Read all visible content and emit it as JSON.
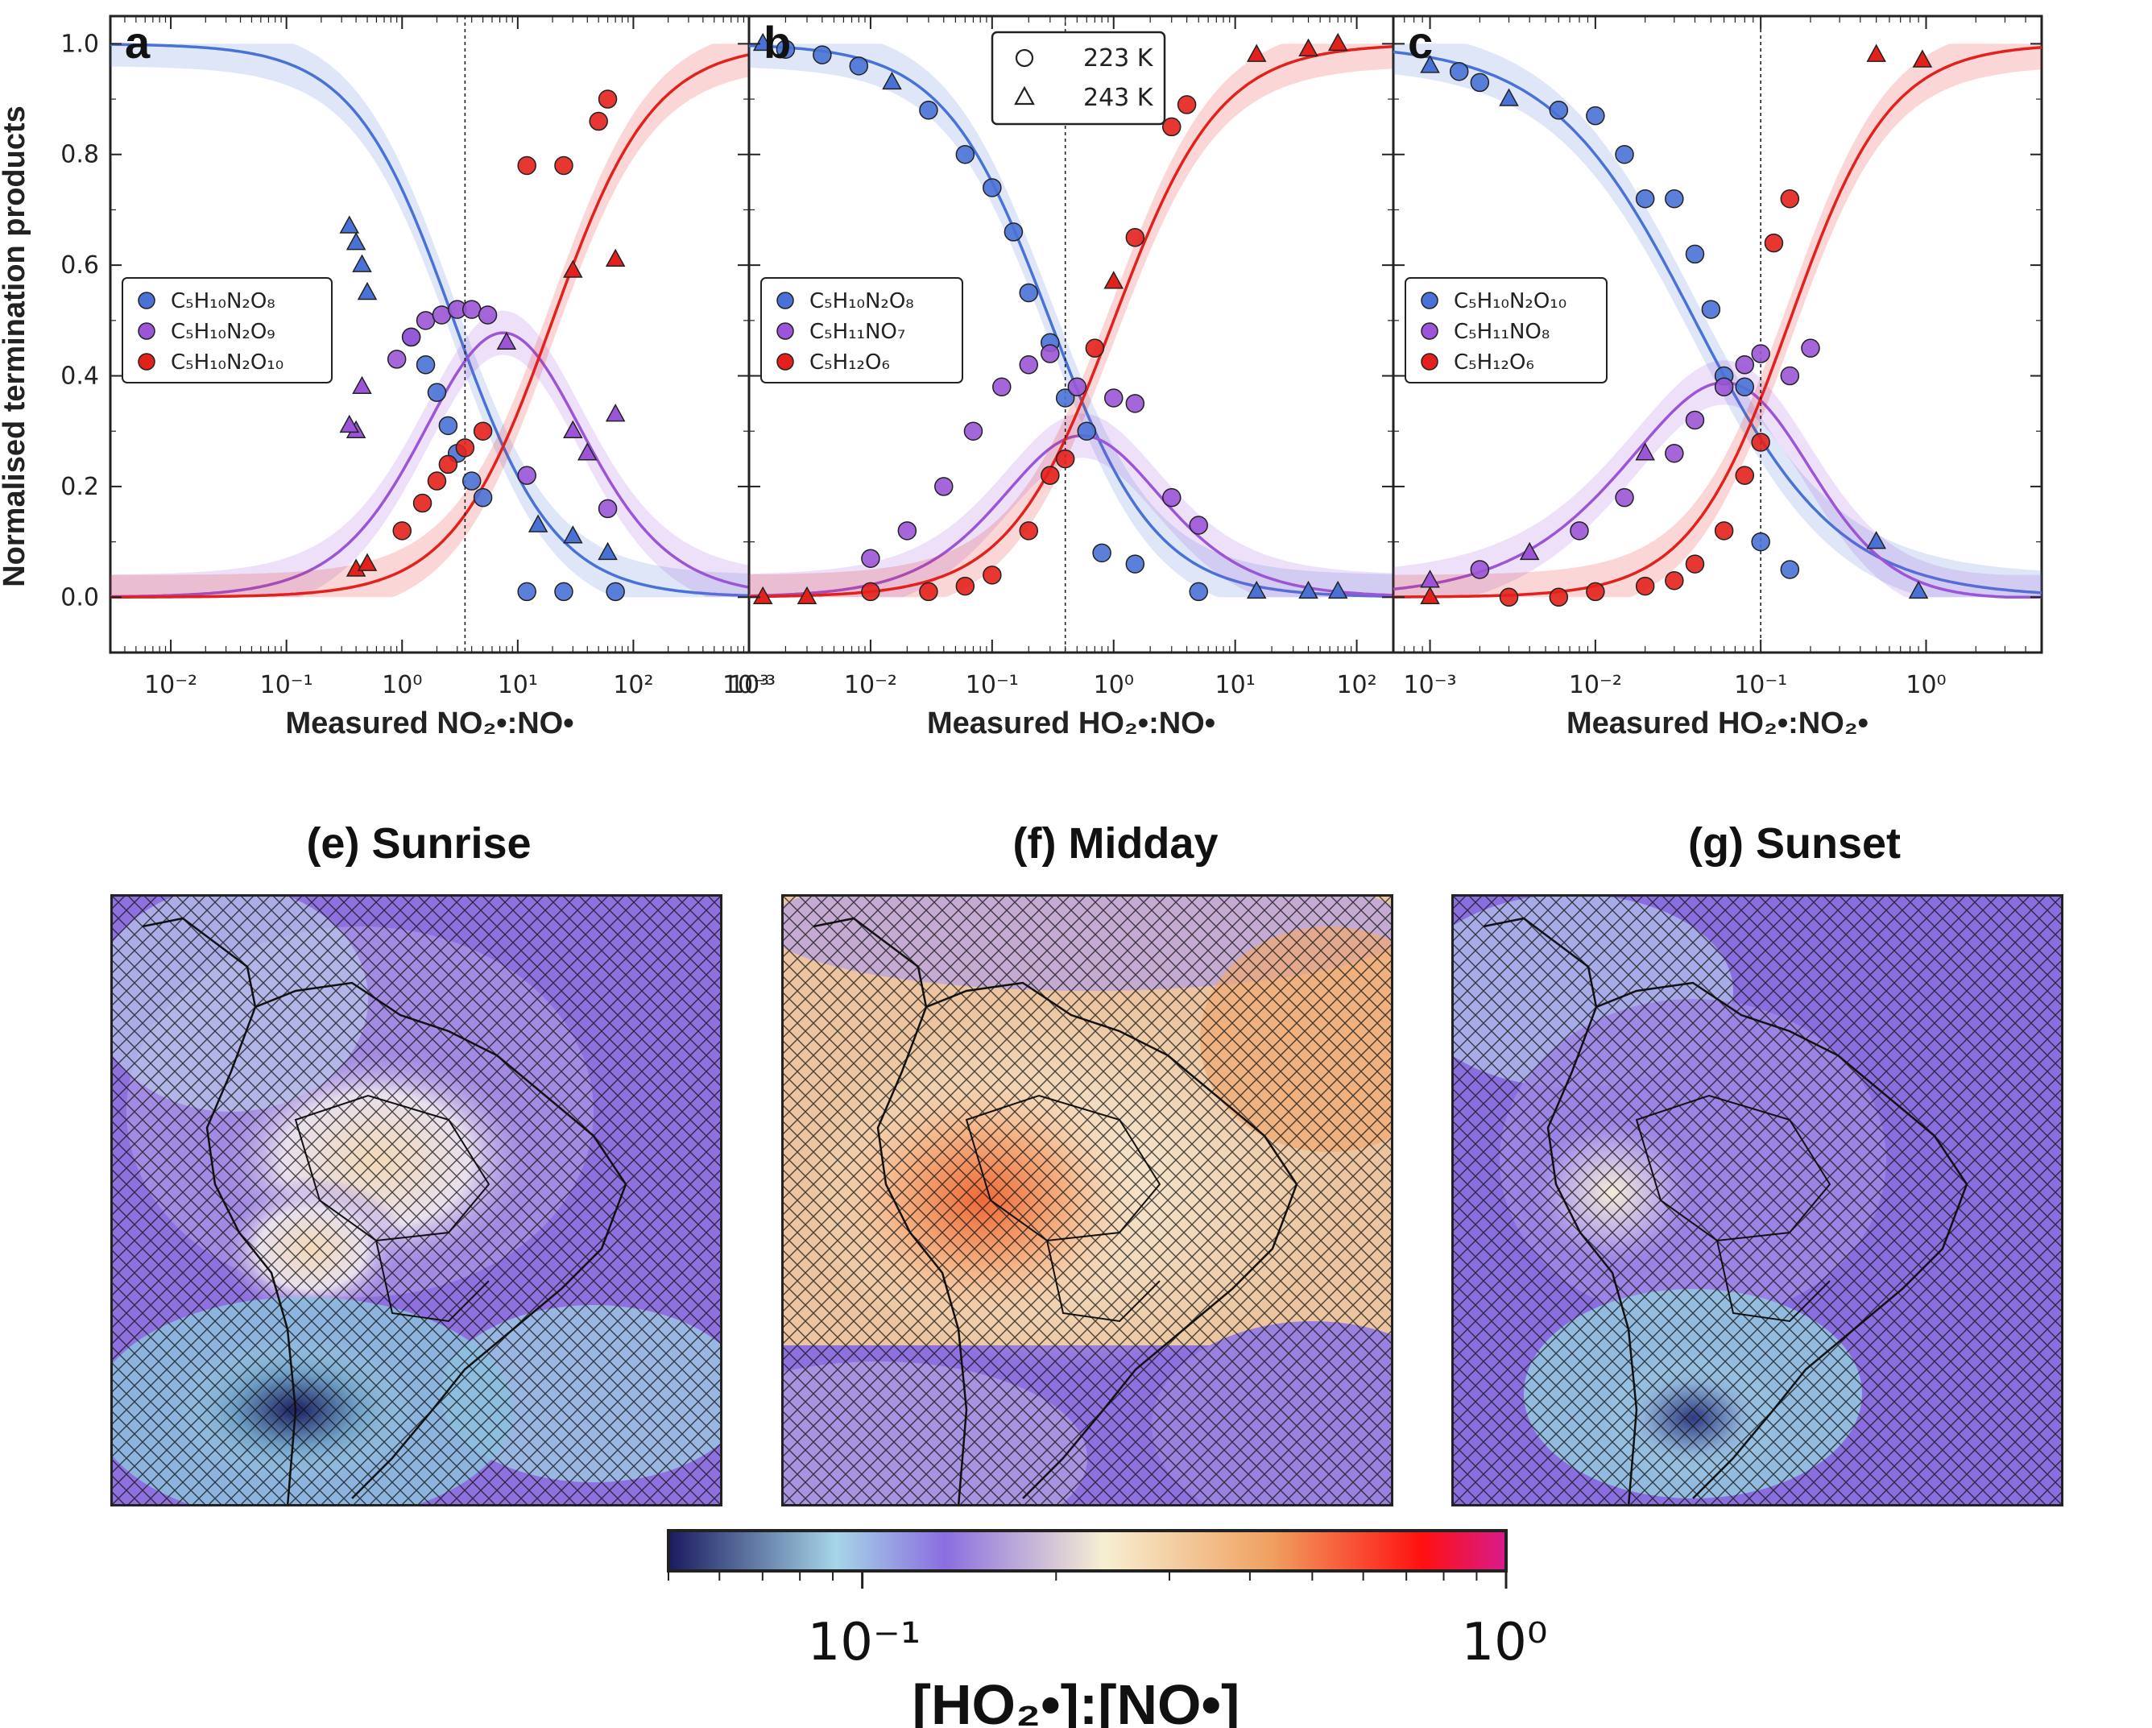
{
  "figure": {
    "ylabel": "Normalised termination products",
    "marker_legend": [
      {
        "marker": "circle",
        "label": "223 K"
      },
      {
        "marker": "triangle",
        "label": "243 K"
      }
    ],
    "colors": {
      "blue": "#4a72d6",
      "purple": "#9b55d6",
      "red": "#e3211c"
    }
  },
  "chart_data": [
    {
      "panel": "a",
      "type": "scatter",
      "xscale": "log",
      "xlim": [
        0.003,
        1000
      ],
      "ylim": [
        -0.1,
        1.05
      ],
      "xticks": [
        "10⁻²",
        "10⁻¹",
        "10⁰",
        "10¹",
        "10²",
        "10³"
      ],
      "yticks": [
        "0.0",
        "0.2",
        "0.4",
        "0.6",
        "0.8",
        "1.0"
      ],
      "xlabel": "Measured NO₂•:NO•",
      "vline": 3.5,
      "series": [
        {
          "name": "C₅H₁₀N₂O₈",
          "color": "blue",
          "points": [
            [
              0.4,
              0.64,
              "t"
            ],
            [
              0.45,
              0.6,
              "t"
            ],
            [
              0.5,
              0.55,
              "t"
            ],
            [
              0.35,
              0.67,
              "t"
            ],
            [
              1.2,
              0.47,
              "c"
            ],
            [
              1.6,
              0.42,
              "c"
            ],
            [
              2.0,
              0.37,
              "c"
            ],
            [
              2.5,
              0.31,
              "c"
            ],
            [
              3.0,
              0.26,
              "c"
            ],
            [
              4.0,
              0.21,
              "c"
            ],
            [
              5.0,
              0.18,
              "c"
            ],
            [
              15,
              0.13,
              "t"
            ],
            [
              30,
              0.11,
              "t"
            ],
            [
              60,
              0.08,
              "t"
            ],
            [
              12,
              0.01,
              "c"
            ],
            [
              25,
              0.01,
              "c"
            ],
            [
              70,
              0.01,
              "c"
            ]
          ]
        },
        {
          "name": "C₅H₁₀N₂O₉",
          "color": "purple",
          "points": [
            [
              0.4,
              0.3,
              "t"
            ],
            [
              0.45,
              0.38,
              "t"
            ],
            [
              0.35,
              0.31,
              "t"
            ],
            [
              0.9,
              0.43,
              "c"
            ],
            [
              1.2,
              0.47,
              "c"
            ],
            [
              1.6,
              0.5,
              "c"
            ],
            [
              2.2,
              0.51,
              "c"
            ],
            [
              3.0,
              0.52,
              "c"
            ],
            [
              4.0,
              0.52,
              "c"
            ],
            [
              5.5,
              0.51,
              "c"
            ],
            [
              8,
              0.46,
              "t"
            ],
            [
              12,
              0.22,
              "c"
            ],
            [
              30,
              0.3,
              "t"
            ],
            [
              40,
              0.26,
              "t"
            ],
            [
              60,
              0.16,
              "c"
            ],
            [
              70,
              0.33,
              "t"
            ]
          ]
        },
        {
          "name": "C₅H₁₀N₂O₁₀",
          "color": "red",
          "points": [
            [
              0.4,
              0.05,
              "t"
            ],
            [
              0.5,
              0.06,
              "t"
            ],
            [
              1.0,
              0.12,
              "c"
            ],
            [
              1.5,
              0.17,
              "c"
            ],
            [
              2.0,
              0.21,
              "c"
            ],
            [
              2.5,
              0.24,
              "c"
            ],
            [
              3.5,
              0.27,
              "c"
            ],
            [
              5.0,
              0.3,
              "c"
            ],
            [
              12,
              0.78,
              "c"
            ],
            [
              25,
              0.78,
              "c"
            ],
            [
              30,
              0.59,
              "t"
            ],
            [
              60,
              0.9,
              "c"
            ],
            [
              70,
              0.61,
              "t"
            ],
            [
              50,
              0.86,
              "c"
            ]
          ]
        }
      ]
    },
    {
      "panel": "b",
      "type": "scatter",
      "xscale": "log",
      "xlim": [
        0.001,
        200
      ],
      "ylim": [
        -0.1,
        1.05
      ],
      "xticks": [
        "10⁻³",
        "10⁻²",
        "10⁻¹",
        "10⁰",
        "10¹",
        "10²"
      ],
      "xlabel": "Measured HO₂•:NO•",
      "vline": 0.4,
      "series": [
        {
          "name": "C₅H₁₀N₂O₈",
          "color": "blue",
          "points": [
            [
              0.0013,
              1.0,
              "t"
            ],
            [
              0.002,
              0.99,
              "c"
            ],
            [
              0.004,
              0.98,
              "c"
            ],
            [
              0.008,
              0.96,
              "c"
            ],
            [
              0.015,
              0.93,
              "t"
            ],
            [
              0.03,
              0.88,
              "c"
            ],
            [
              0.06,
              0.8,
              "c"
            ],
            [
              0.1,
              0.74,
              "c"
            ],
            [
              0.15,
              0.66,
              "c"
            ],
            [
              0.2,
              0.55,
              "c"
            ],
            [
              0.3,
              0.46,
              "c"
            ],
            [
              0.4,
              0.36,
              "c"
            ],
            [
              0.6,
              0.3,
              "c"
            ],
            [
              0.8,
              0.08,
              "c"
            ],
            [
              1.5,
              0.06,
              "c"
            ],
            [
              5,
              0.01,
              "c"
            ],
            [
              15,
              0.01,
              "t"
            ],
            [
              40,
              0.01,
              "t"
            ],
            [
              70,
              0.01,
              "t"
            ]
          ]
        },
        {
          "name": "C₅H₁₁NO₇",
          "color": "purple",
          "points": [
            [
              0.01,
              0.07,
              "c"
            ],
            [
              0.02,
              0.12,
              "c"
            ],
            [
              0.04,
              0.2,
              "c"
            ],
            [
              0.07,
              0.3,
              "c"
            ],
            [
              0.12,
              0.38,
              "c"
            ],
            [
              0.2,
              0.42,
              "c"
            ],
            [
              0.3,
              0.44,
              "c"
            ],
            [
              0.5,
              0.38,
              "c"
            ],
            [
              1.0,
              0.36,
              "c"
            ],
            [
              1.5,
              0.35,
              "c"
            ],
            [
              3,
              0.18,
              "c"
            ],
            [
              5,
              0.13,
              "c"
            ]
          ]
        },
        {
          "name": "C₅H₁₂O₆",
          "color": "red",
          "points": [
            [
              0.0013,
              0.0,
              "t"
            ],
            [
              0.003,
              0.0,
              "t"
            ],
            [
              0.01,
              0.01,
              "c"
            ],
            [
              0.03,
              0.01,
              "c"
            ],
            [
              0.06,
              0.02,
              "c"
            ],
            [
              0.1,
              0.04,
              "c"
            ],
            [
              0.2,
              0.12,
              "c"
            ],
            [
              0.3,
              0.22,
              "c"
            ],
            [
              0.4,
              0.25,
              "c"
            ],
            [
              0.7,
              0.45,
              "c"
            ],
            [
              1.0,
              0.57,
              "t"
            ],
            [
              1.5,
              0.65,
              "c"
            ],
            [
              3,
              0.85,
              "c"
            ],
            [
              4,
              0.89,
              "c"
            ],
            [
              15,
              0.98,
              "t"
            ],
            [
              40,
              0.99,
              "t"
            ],
            [
              70,
              1.0,
              "t"
            ]
          ]
        }
      ]
    },
    {
      "panel": "c",
      "type": "scatter",
      "xscale": "log",
      "xlim": [
        0.0006,
        5
      ],
      "ylim": [
        -0.1,
        1.05
      ],
      "xticks": [
        "10⁻³",
        "10⁻²",
        "10⁻¹",
        "10⁰"
      ],
      "xlabel": "Measured HO₂•:NO₂•",
      "vline": 0.1,
      "series": [
        {
          "name": "C₅H₁₀N₂O₁₀",
          "color": "blue",
          "points": [
            [
              0.001,
              0.96,
              "t"
            ],
            [
              0.0015,
              0.95,
              "c"
            ],
            [
              0.002,
              0.93,
              "c"
            ],
            [
              0.003,
              0.9,
              "t"
            ],
            [
              0.006,
              0.88,
              "c"
            ],
            [
              0.01,
              0.87,
              "c"
            ],
            [
              0.015,
              0.8,
              "c"
            ],
            [
              0.02,
              0.72,
              "c"
            ],
            [
              0.03,
              0.72,
              "c"
            ],
            [
              0.04,
              0.62,
              "c"
            ],
            [
              0.05,
              0.52,
              "c"
            ],
            [
              0.06,
              0.4,
              "c"
            ],
            [
              0.08,
              0.38,
              "c"
            ],
            [
              0.1,
              0.1,
              "c"
            ],
            [
              0.15,
              0.05,
              "c"
            ],
            [
              0.5,
              0.1,
              "t"
            ],
            [
              0.9,
              0.01,
              "t"
            ]
          ]
        },
        {
          "name": "C₅H₁₁NO₈",
          "color": "purple",
          "points": [
            [
              0.001,
              0.03,
              "t"
            ],
            [
              0.002,
              0.05,
              "c"
            ],
            [
              0.004,
              0.08,
              "t"
            ],
            [
              0.008,
              0.12,
              "c"
            ],
            [
              0.015,
              0.18,
              "c"
            ],
            [
              0.02,
              0.26,
              "t"
            ],
            [
              0.03,
              0.26,
              "c"
            ],
            [
              0.04,
              0.32,
              "c"
            ],
            [
              0.06,
              0.38,
              "c"
            ],
            [
              0.08,
              0.42,
              "c"
            ],
            [
              0.1,
              0.44,
              "c"
            ],
            [
              0.15,
              0.4,
              "c"
            ],
            [
              0.2,
              0.45,
              "c"
            ]
          ]
        },
        {
          "name": "C₅H₁₂O₆",
          "color": "red",
          "points": [
            [
              0.001,
              0.0,
              "t"
            ],
            [
              0.003,
              0.0,
              "c"
            ],
            [
              0.006,
              0.0,
              "c"
            ],
            [
              0.01,
              0.01,
              "c"
            ],
            [
              0.02,
              0.02,
              "c"
            ],
            [
              0.03,
              0.03,
              "c"
            ],
            [
              0.04,
              0.06,
              "c"
            ],
            [
              0.06,
              0.12,
              "c"
            ],
            [
              0.08,
              0.22,
              "c"
            ],
            [
              0.1,
              0.28,
              "c"
            ],
            [
              0.12,
              0.64,
              "c"
            ],
            [
              0.15,
              0.72,
              "c"
            ],
            [
              0.5,
              0.98,
              "t"
            ],
            [
              0.95,
              0.97,
              "t"
            ]
          ]
        }
      ]
    }
  ],
  "maps": [
    {
      "label": "(e) Sunrise",
      "tone": "sunrise"
    },
    {
      "label": "(f) Midday",
      "tone": "midday"
    },
    {
      "label": "(g) Sunset",
      "tone": "sunset"
    }
  ],
  "colorbar": {
    "label": "[HO₂•]:[NO•]",
    "ticks": [
      "10⁻¹",
      "10⁰"
    ],
    "range": [
      0.05,
      1.0
    ],
    "colors": [
      "#1a1a5e",
      "#a6d5e8",
      "#8a6ee0",
      "#f7efd2",
      "#f0a060",
      "#ff1010",
      "#d81b8c"
    ]
  }
}
